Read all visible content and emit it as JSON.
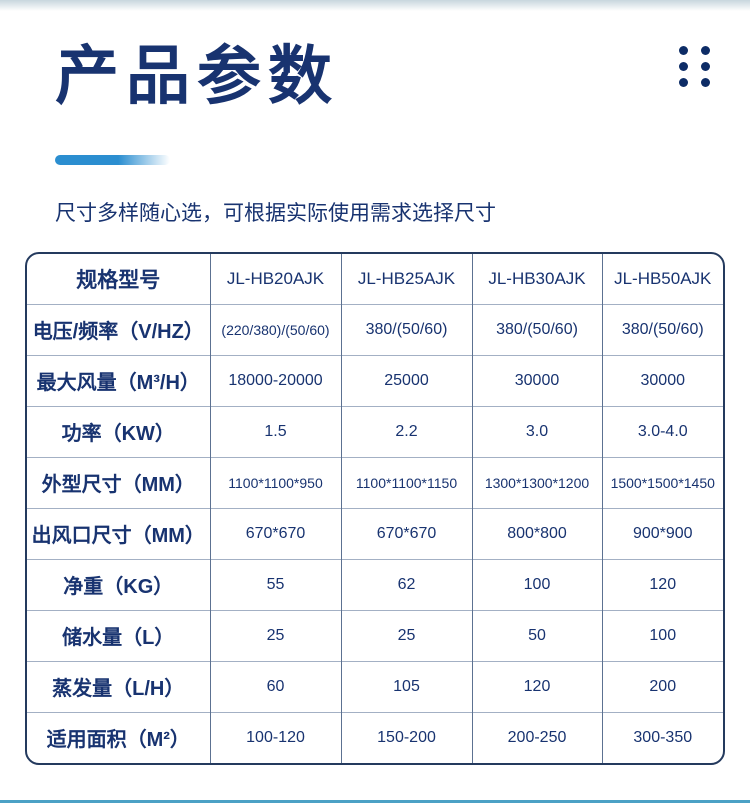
{
  "header": {
    "title": "产品参数",
    "subtitle": "尺寸多样随心选，可根据实际使用需求选择尺寸",
    "dots_icon": "six-dot-grid"
  },
  "colors": {
    "navy": "#183370",
    "dot": "#0d2c66",
    "table_border": "#243a5e",
    "grid_v": "#5c7191",
    "grid_h": "#a3b0c4",
    "accent": "#2b8ed0",
    "bottom_line": "#4ba1c5",
    "band_top": "#c7d6de"
  },
  "spec_table": {
    "columns": [
      "规格型号",
      "JL-HB20AJK",
      "JL-HB25AJK",
      "JL-HB30AJK",
      "JL-HB50AJK"
    ],
    "rows": [
      {
        "label": "电压/频率（V/HZ）",
        "values": [
          "(220/380)/(50/60)",
          "380/(50/60)",
          "380/(50/60)",
          "380/(50/60)"
        ]
      },
      {
        "label": "最大风量（M³/H）",
        "values": [
          "18000-20000",
          "25000",
          "30000",
          "30000"
        ]
      },
      {
        "label": "功率（KW）",
        "values": [
          "1.5",
          "2.2",
          "3.0",
          "3.0-4.0"
        ]
      },
      {
        "label": "外型尺寸（MM）",
        "values": [
          "1100*1100*950",
          "1100*1100*1150",
          "1300*1300*1200",
          "1500*1500*1450"
        ]
      },
      {
        "label": "出风口尺寸（MM）",
        "values": [
          "670*670",
          "670*670",
          "800*800",
          "900*900"
        ]
      },
      {
        "label": "净重（KG）",
        "values": [
          "55",
          "62",
          "100",
          "120"
        ]
      },
      {
        "label": "储水量（L）",
        "values": [
          "25",
          "25",
          "50",
          "100"
        ]
      },
      {
        "label": "蒸发量（L/H）",
        "values": [
          "60",
          "105",
          "120",
          "200"
        ]
      },
      {
        "label": "适用面积（M²）",
        "values": [
          "100-120",
          "150-200",
          "200-250",
          "300-350"
        ]
      }
    ]
  }
}
